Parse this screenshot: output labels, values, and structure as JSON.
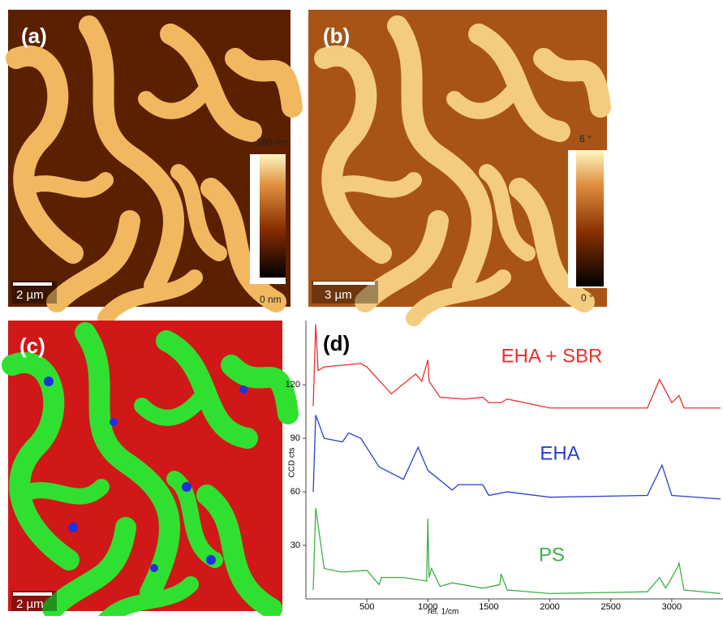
{
  "panels": {
    "a": {
      "label": "(a)",
      "scale_bar": "2 µm",
      "colorbar_max": "100 nm",
      "colorbar_min": "0 nm"
    },
    "b": {
      "label": "(b)",
      "scale_bar": "3 µm",
      "colorbar_max": "6 °",
      "colorbar_min": "0 °"
    },
    "c": {
      "label": "(c)",
      "scale_bar": "2 µm"
    }
  },
  "chart_data": {
    "type": "line",
    "label": "(d)",
    "y_label": "CCD cts",
    "x_label": "rel. 1/cm",
    "xlim": [
      0,
      3420
    ],
    "ylim": [
      0,
      156
    ],
    "xticks": [
      500,
      1000,
      1500,
      2000,
      2500,
      3000
    ],
    "yticks": [
      30,
      60,
      90,
      120
    ],
    "series": [
      {
        "name": "EHA + SBR",
        "color": "#e8302a",
        "x": [
          60,
          80,
          100,
          150,
          300,
          450,
          500,
          700,
          900,
          950,
          1000,
          1010,
          1100,
          1300,
          1450,
          1500,
          1600,
          1650,
          2000,
          2800,
          2900,
          3000,
          3060,
          3100,
          3400
        ],
        "values": [
          108,
          154,
          128,
          130,
          131,
          132,
          130,
          115,
          126,
          122,
          134,
          122,
          113,
          112,
          113,
          110,
          110,
          112,
          107,
          107,
          123,
          110,
          114,
          107,
          107
        ]
      },
      {
        "name": "EHA",
        "color": "#2a3fd0",
        "x": [
          60,
          80,
          150,
          300,
          350,
          450,
          600,
          800,
          920,
          1000,
          1200,
          1250,
          1450,
          1500,
          1650,
          2000,
          2800,
          2920,
          3000,
          3400
        ],
        "values": [
          60,
          103,
          90,
          88,
          93,
          90,
          74,
          67,
          85,
          72,
          61,
          64,
          64,
          58,
          60,
          57,
          58,
          75,
          58,
          56
        ]
      },
      {
        "name": "PS",
        "color": "#3cb043",
        "x": [
          60,
          80,
          150,
          300,
          500,
          600,
          620,
          800,
          990,
          1000,
          1010,
          1030,
          1100,
          1200,
          1450,
          1590,
          1600,
          1650,
          2000,
          2800,
          2900,
          2950,
          3050,
          3060,
          3100,
          3400
        ],
        "values": [
          5,
          51,
          17,
          15,
          16,
          8,
          12,
          12,
          10,
          45,
          12,
          17,
          7,
          9,
          6,
          8,
          14,
          5,
          3,
          4,
          12,
          6,
          18,
          20,
          5,
          3
        ]
      }
    ]
  }
}
